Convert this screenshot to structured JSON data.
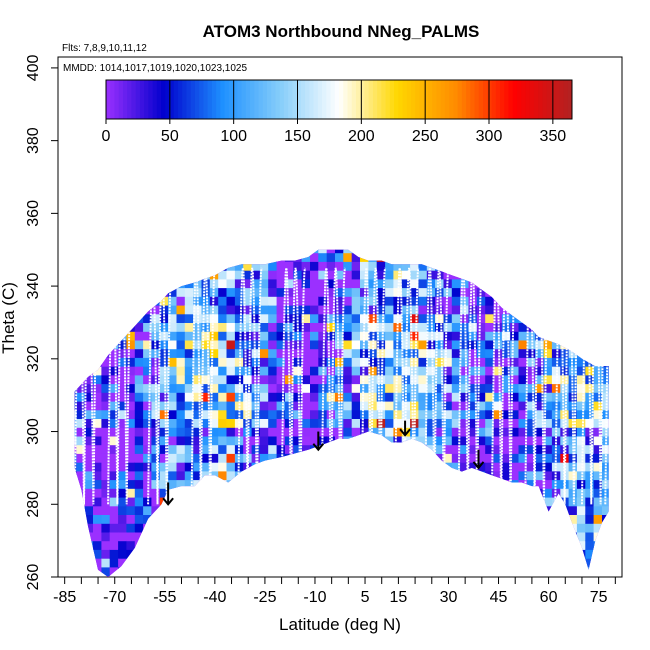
{
  "chart_data": {
    "type": "heatmap",
    "title": "ATOM3 Northbound NNeg_PALMS",
    "subtitle_flights": "Flts: 7,8,9,10,11,12",
    "subtitle_dates": "MMDD: 1014,1017,1019,1020,1023,1025",
    "xlabel": "Latitude (deg N)",
    "ylabel": "Theta (C)",
    "xlim": [
      -87,
      82
    ],
    "ylim": [
      260,
      403
    ],
    "x_ticks": [
      -85,
      -80,
      -75,
      -70,
      -65,
      -60,
      -55,
      -50,
      -45,
      -40,
      -35,
      -30,
      -25,
      -20,
      -15,
      -10,
      -5,
      0,
      5,
      10,
      15,
      20,
      25,
      30,
      35,
      40,
      45,
      50,
      55,
      60,
      65,
      70,
      75,
      80
    ],
    "x_tick_labels": [
      "-85",
      "-70",
      "-55",
      "-40",
      "-25",
      "-10",
      "5",
      "15",
      "30",
      "45",
      "60",
      "75"
    ],
    "y_ticks": [
      260,
      280,
      300,
      320,
      340,
      360,
      380,
      400
    ],
    "y_tick_labels": [
      "260",
      "280",
      "300",
      "320",
      "340",
      "360",
      "380",
      "400"
    ],
    "colorbar": {
      "range": [
        0,
        365
      ],
      "ticks": [
        0,
        50,
        100,
        150,
        200,
        250,
        300,
        350
      ],
      "tick_labels": [
        "0",
        "50",
        "100",
        "150",
        "200",
        "250",
        "300",
        "350"
      ],
      "colors": [
        "#9b30ff",
        "#0000cd",
        "#1e90ff",
        "#87cefa",
        "#ffffff",
        "#ffd700",
        "#ff8c00",
        "#ff0000",
        "#b22222"
      ]
    },
    "coverage": {
      "lat": [
        -82,
        -80,
        -78,
        -75,
        -72,
        -68,
        -64,
        -60,
        -56,
        -54,
        -50,
        -46,
        -43,
        -40,
        -36,
        -32,
        -28,
        -25,
        -20,
        -16,
        -12,
        -9,
        -6,
        -3,
        0,
        3,
        6,
        10,
        13,
        16,
        19,
        22,
        25,
        28,
        31,
        34,
        37,
        40,
        43,
        46,
        49,
        52,
        55,
        57,
        60,
        63,
        65,
        67,
        70,
        72,
        74,
        76,
        78
      ],
      "theta_top": [
        311,
        313,
        315,
        317,
        321,
        325,
        329,
        333,
        336,
        338,
        340,
        341,
        342,
        343,
        345,
        346,
        346,
        346,
        347,
        347,
        348,
        350,
        350,
        350,
        350,
        348,
        347,
        347,
        346,
        346,
        346,
        346,
        345,
        344,
        343,
        342,
        341,
        339,
        337,
        334,
        332,
        330,
        328,
        326,
        325,
        324,
        323,
        322,
        320,
        319,
        318,
        318,
        318
      ],
      "theta_bottom": [
        290,
        284,
        274,
        262,
        260,
        263,
        268,
        276,
        280,
        284,
        285,
        285,
        288,
        288,
        286,
        289,
        291,
        292,
        293,
        294,
        295,
        296,
        297,
        298,
        298,
        299,
        300,
        299,
        297,
        297,
        298,
        297,
        295,
        292,
        290,
        289,
        290,
        289,
        288,
        287,
        286,
        286,
        285,
        285,
        278,
        283,
        280,
        275,
        268,
        262,
        270,
        275,
        278
      ]
    },
    "flight_profiles_lat": [
      -82,
      -72,
      -60,
      -47,
      -33,
      -20,
      -8,
      4,
      14,
      23,
      33,
      43,
      53,
      62,
      70,
      77
    ],
    "arrows": [
      {
        "lat": -54,
        "theta_top": 286,
        "theta_bottom": 280
      },
      {
        "lat": -9,
        "theta_top": 300,
        "theta_bottom": 295
      },
      {
        "lat": 17,
        "theta_top": 303,
        "theta_bottom": 299
      },
      {
        "lat": 39,
        "theta_top": 295,
        "theta_bottom": 290
      }
    ]
  }
}
